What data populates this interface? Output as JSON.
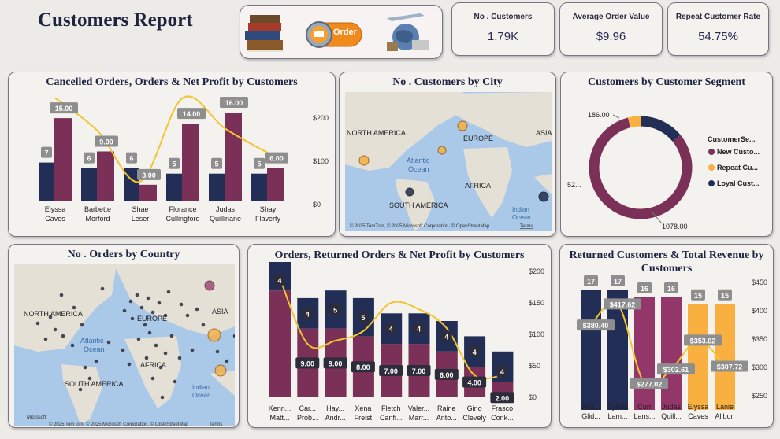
{
  "header": {
    "title": "Customers Report",
    "order_button_label": "Order"
  },
  "kpis": [
    {
      "label": "No . Customers",
      "value": "1.79K"
    },
    {
      "label": "Average Order Value",
      "value": "$9.96"
    },
    {
      "label": "Repeat Customer Rate",
      "value": "54.75%"
    }
  ],
  "maps": {
    "city_title": "No . Customers by City",
    "country_title": "No . Orders by Country",
    "labels": {
      "north_america": "NORTH AMERICA",
      "europe": "EUROPE",
      "asia": "ASIA",
      "atlantic": "Atlantic",
      "ocean": "Ocean",
      "africa": "AFRICA",
      "south_america": "SOUTH AMERICA",
      "indian": "Indian"
    },
    "attribution": "© 2025 TomTom, © 2025 Microsoft Corporation, © OpenStreetMap",
    "terms": "Terms",
    "microsoft": "Microsoft"
  },
  "chart_data": [
    {
      "type": "bar",
      "title": "Cancelled Orders, Orders & Net Profit by Customers",
      "categories": [
        "Elyssa Caves",
        "Barbette Morford",
        "Shae Leser",
        "Florance Cullingford",
        "Judas Quillinane",
        "Shay Flaverty"
      ],
      "series": [
        {
          "values": [
            7,
            6,
            6,
            5,
            5,
            5
          ],
          "color": "#222e55"
        },
        {
          "values": [
            15,
            9,
            3,
            14,
            16,
            6
          ],
          "color": "#7b3058"
        },
        {
          "values": [
            235,
            160,
            45,
            235,
            165,
            110
          ],
          "color": "#f4c430"
        }
      ],
      "data_labels": [
        "7",
        "6",
        "6",
        "5",
        "5",
        "5",
        "15.00",
        "9.00",
        "3.00",
        "14.00",
        "16.00",
        "6.00"
      ],
      "y_ticks": [
        "$200",
        "$100",
        "$0"
      ]
    },
    {
      "type": "pie",
      "title": "Customers by Customer Segment",
      "legend_title": "CustomerSe...",
      "slices": [
        {
          "name": "New Custo...",
          "value": 1078,
          "label": "1078.00",
          "color": "#7b3058"
        },
        {
          "name": "Repeat Cu...",
          "value": 52,
          "label": "52...",
          "color": "#f9b040"
        },
        {
          "name": "Loyal Cust...",
          "value": 186,
          "label": "186.00",
          "color": "#222e55"
        }
      ]
    },
    {
      "type": "bar",
      "title": "Orders, Returned Orders & Net Profit by Customers",
      "categories": [
        "Kenn... Matt...",
        "Car... Prob...",
        "Hay... Andr...",
        "Xena Freist",
        "Fletch Canfi...",
        "Valer... Marr...",
        "Raine Anto...",
        "Gino Clevely",
        "Frasco Conk..."
      ],
      "series": [
        {
          "values": [
            4,
            4,
            5,
            5,
            4,
            4,
            4,
            4,
            4
          ],
          "color": "#222e55"
        },
        {
          "values": [
            14,
            9,
            9,
            8,
            7,
            7,
            6,
            4,
            2
          ],
          "color": "#7b3058"
        },
        {
          "values": [
            190,
            85,
            90,
            105,
            150,
            140,
            110,
            35,
            35
          ],
          "color": "#f4c430"
        }
      ],
      "returned_labels": [
        "4",
        "4",
        "5",
        "5",
        "4",
        "4",
        "4",
        "4",
        "4"
      ],
      "order_labels": [
        "",
        "9.00",
        "9.00",
        "8.00",
        "7.00",
        "7.00",
        "6.00",
        "4.00",
        "2.00"
      ],
      "y_ticks": [
        "$200",
        "$150",
        "$100",
        "$50",
        "$0"
      ]
    },
    {
      "type": "bar",
      "title": "Returned Customers & Total Revenue by Customers",
      "categories": [
        "Mat... Glid...",
        "Sybilla Lam...",
        "Curr Lans...",
        "Judas Quill...",
        "Elyssa Caves",
        "Lanie Allbon"
      ],
      "series": [
        {
          "values": [
            17,
            17,
            16,
            16,
            15,
            15
          ],
          "colors": [
            "#222e55",
            "#222e55",
            "#93376b",
            "#93376b",
            "#f9b040",
            "#f9b040"
          ]
        },
        {
          "values": [
            380.4,
            417.62,
            277.02,
            302.61,
            353.62,
            307.72
          ],
          "color": "#f4c430"
        }
      ],
      "count_labels": [
        "17",
        "17",
        "16",
        "16",
        "15",
        "15"
      ],
      "revenue_labels": [
        "$380.40",
        "$417.62",
        "$277.02",
        "$302.61",
        "$353.62",
        "$307.72"
      ],
      "y_ticks": [
        "$450",
        "$400",
        "$350",
        "$300",
        "$250"
      ]
    }
  ]
}
